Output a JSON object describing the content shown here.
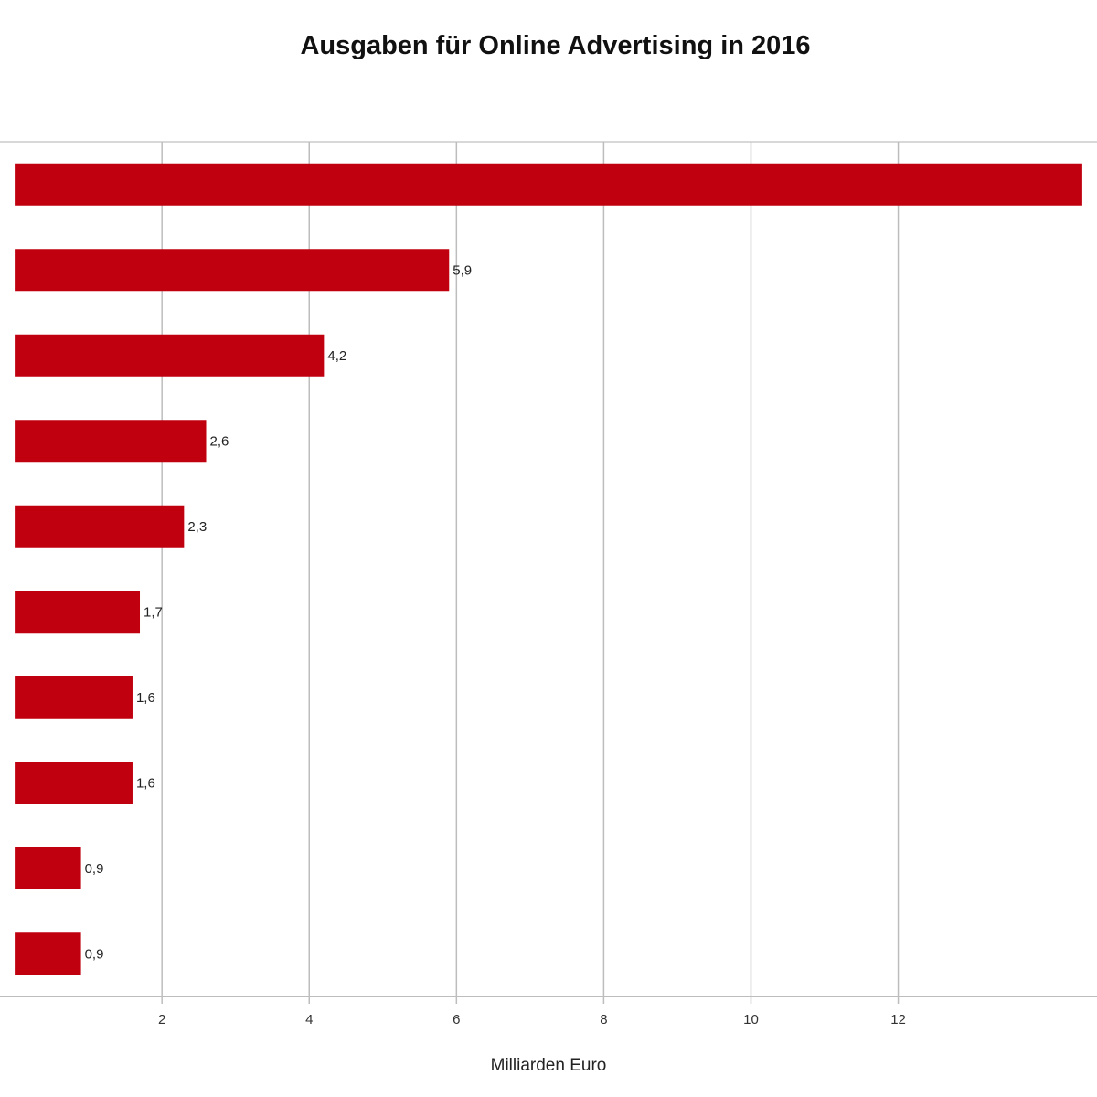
{
  "chart_data": {
    "type": "bar",
    "orientation": "horizontal",
    "title": "Ausgaben für Online Advertising in 2016",
    "xlabel": "Milliarden Euro",
    "ylabel": "",
    "xlim": [
      -0.2,
      14.7
    ],
    "x_ticks": [
      2,
      4,
      6,
      8,
      10,
      12
    ],
    "x_tick_labels": [
      "2",
      "4",
      "6",
      "8",
      "10",
      "12"
    ],
    "grid": true,
    "bar_color": "#c0000f",
    "series": [
      {
        "values": [
          14.5,
          5.9,
          4.2,
          2.6,
          2.3,
          1.7,
          1.6,
          1.6,
          0.9,
          0.9
        ],
        "labels": [
          "",
          "5,9",
          "4,2",
          "2,6",
          "2,3",
          "1,7",
          "1,6",
          "1,6",
          "0,9",
          "0,9"
        ]
      }
    ]
  }
}
